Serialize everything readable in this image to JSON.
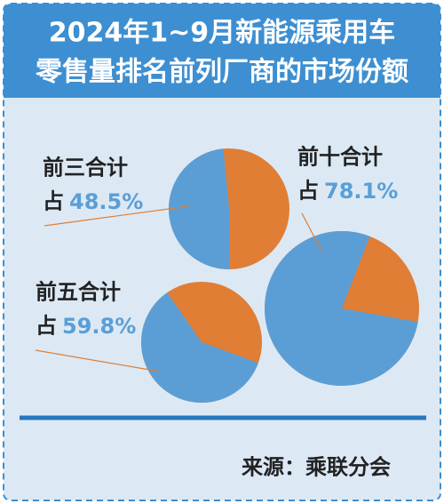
{
  "title_lines": [
    "2024年1~9月新能源乘用车",
    "零售量排名前列厂商的市场份额"
  ],
  "source": "来源：乘联分会",
  "chart_data": [
    {
      "type": "pie",
      "label": "前三合计",
      "prefix": "占",
      "values": [
        48.5
      ],
      "value_labels": [
        "48.5%"
      ],
      "color": "#5b9ed6",
      "rest_color": "#e07e35"
    },
    {
      "type": "pie",
      "label": "前五合计",
      "prefix": "占",
      "values": [
        59.8
      ],
      "value_labels": [
        "59.8%"
      ],
      "color": "#5b9ed6",
      "rest_color": "#e07e35"
    },
    {
      "type": "pie",
      "label": "前十合计",
      "prefix": "占",
      "values": [
        78.1
      ],
      "value_labels": [
        "78.1%"
      ],
      "color": "#5b9ed6",
      "rest_color": "#e07e35"
    }
  ]
}
